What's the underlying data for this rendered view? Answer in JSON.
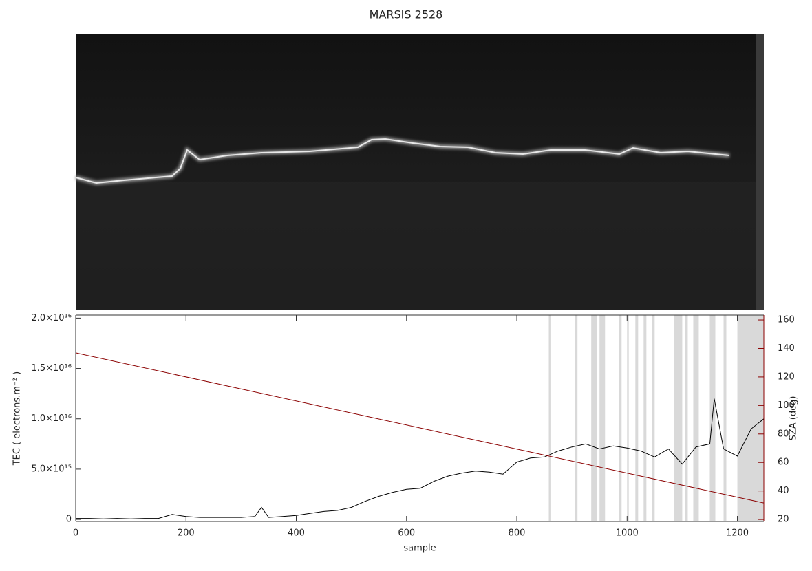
{
  "chart_data": {
    "type": "line",
    "title": "MARSIS 2528",
    "xlabel": "sample",
    "ylabel": "TEC ( electrons.m⁻² )",
    "y2label": "SZA (deg)",
    "xlim": [
      0,
      1248
    ],
    "xticks": [
      0,
      200,
      400,
      600,
      800,
      1000,
      1200
    ],
    "ylim": [
      -200000000000000.0,
      2.03e+16
    ],
    "yticks": [
      0,
      {
        "value": 5000000000000000.0,
        "label": "5.0×10¹⁵"
      },
      {
        "value": 1e+16,
        "label": "1.0×10¹⁶"
      },
      {
        "value": 1.5e+16,
        "label": "1.5×10¹⁶"
      },
      {
        "value": 2e+16,
        "label": "2.0×10¹⁶"
      }
    ],
    "y2lim": [
      18.6,
      163.4
    ],
    "y2ticks": [
      20,
      40,
      60,
      80,
      100,
      120,
      140,
      160
    ],
    "y2color": "#8b0000",
    "shade_color": "#d9d9d9",
    "shaded_regions": [
      [
        858,
        861
      ],
      [
        905,
        910
      ],
      [
        935,
        945
      ],
      [
        950,
        960
      ],
      [
        985,
        990
      ],
      [
        1000,
        1003
      ],
      [
        1015,
        1020
      ],
      [
        1030,
        1035
      ],
      [
        1045,
        1050
      ],
      [
        1085,
        1100
      ],
      [
        1105,
        1110
      ],
      [
        1120,
        1130
      ],
      [
        1150,
        1160
      ],
      [
        1175,
        1180
      ],
      [
        1200,
        1248
      ]
    ],
    "series": [
      {
        "name": "TEC",
        "color": "#000000",
        "x": [
          0,
          25,
          50,
          75,
          100,
          125,
          150,
          175,
          200,
          225,
          250,
          275,
          300,
          325,
          337,
          350,
          375,
          400,
          425,
          450,
          475,
          500,
          525,
          550,
          575,
          600,
          625,
          650,
          675,
          700,
          725,
          750,
          775,
          800,
          825,
          850,
          875,
          900,
          925,
          950,
          975,
          1000,
          1025,
          1050,
          1075,
          1100,
          1125,
          1150,
          1158,
          1175,
          1200,
          1225,
          1248
        ],
        "values": [
          100000000000000.0,
          100000000000000.0,
          50000000000000.0,
          100000000000000.0,
          50000000000000.0,
          100000000000000.0,
          100000000000000.0,
          500000000000000.0,
          300000000000000.0,
          200000000000000.0,
          200000000000000.0,
          200000000000000.0,
          200000000000000.0,
          300000000000000.0,
          1200000000000000.0,
          200000000000000.0,
          300000000000000.0,
          400000000000000.0,
          600000000000000.0,
          800000000000000.0,
          900000000000000.0,
          1200000000000000.0,
          1800000000000000.0,
          2300000000000000.0,
          2700000000000000.0,
          3000000000000000.0,
          3100000000000000.0,
          3800000000000000.0,
          4300000000000000.0,
          4600000000000000.0,
          4800000000000000.0,
          4700000000000000.0,
          4500000000000000.0,
          5700000000000000.0,
          6100000000000000.0,
          6200000000000000.0,
          6800000000000000.0,
          7200000000000000.0,
          7500000000000000.0,
          7000000000000000.0,
          7300000000000000.0,
          7100000000000000.0,
          6800000000000000.0,
          6200000000000000.0,
          7000000000000000.0,
          5500000000000000.0,
          7200000000000000.0,
          7500000000000000.0,
          1.2e+16,
          7000000000000000.0,
          6300000000000000.0,
          9000000000000000.0,
          1e+16
        ]
      },
      {
        "name": "SZA",
        "color": "#8b0000",
        "axis": "y2",
        "x": [
          0,
          1248
        ],
        "values": [
          136.9,
          31.6
        ]
      }
    ]
  }
}
